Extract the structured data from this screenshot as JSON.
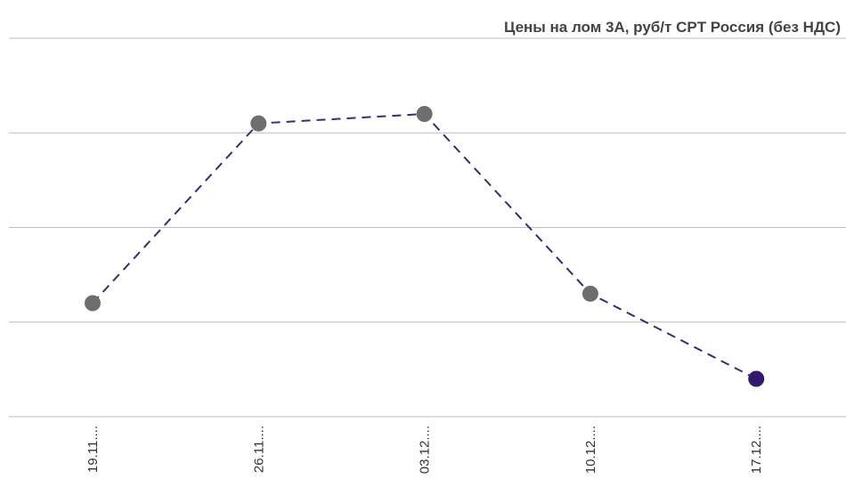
{
  "chart_data": {
    "type": "line",
    "title": "Цены на лом 3А, руб/т CPT Россия  (без НДС)",
    "categories": [
      "19.11....",
      "26.11....",
      "03.12....",
      "10.12....",
      "17.12...."
    ],
    "series": [
      {
        "name": "Цены на лом 3А",
        "color": "#3b2a70",
        "marker_colors": [
          "#6e6e6e",
          "#6e6e6e",
          "#6e6e6e",
          "#6e6e6e",
          "#33196e"
        ],
        "values": [
          1.2,
          3.1,
          3.2,
          1.3,
          0.4
        ]
      }
    ],
    "ylim": [
      0,
      4
    ],
    "yticks": [
      0,
      1,
      2,
      3,
      4
    ],
    "grid": true,
    "dashed": true
  }
}
